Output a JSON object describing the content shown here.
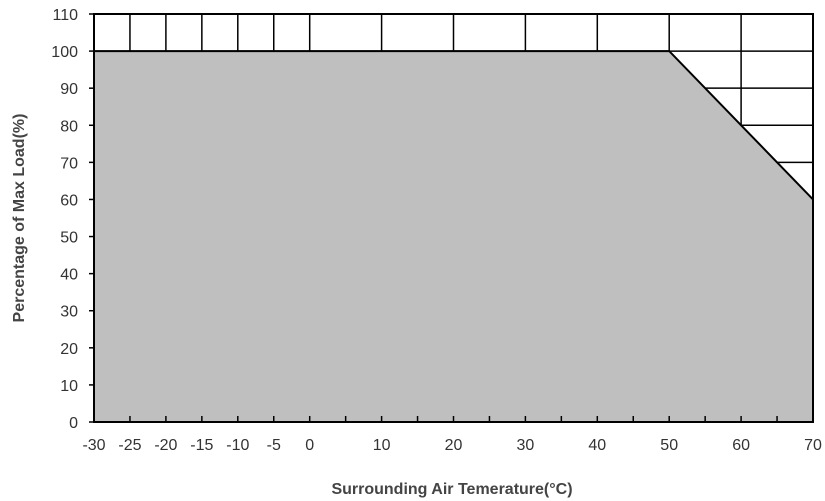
{
  "chart_data": {
    "type": "area",
    "xlabel": "Surrounding Air Temerature(°C)",
    "ylabel": "Percentage of Max Load(%)",
    "xlim": [
      -30,
      70
    ],
    "ylim": [
      0,
      110
    ],
    "x_ticks": [
      -30,
      -25,
      -20,
      -15,
      -10,
      -5,
      0,
      5,
      10,
      15,
      20,
      25,
      30,
      35,
      40,
      45,
      50,
      55,
      60,
      65,
      70
    ],
    "x_tick_labels": [
      "-30",
      "-25",
      "-20",
      "-15",
      "-10",
      "-5",
      "0",
      "10",
      "20",
      "30",
      "40",
      "50",
      "60",
      "70"
    ],
    "x_tick_label_values": [
      -30,
      -25,
      -20,
      -15,
      -10,
      -5,
      0,
      10,
      20,
      30,
      40,
      50,
      60,
      70
    ],
    "y_ticks": [
      0,
      10,
      20,
      30,
      40,
      50,
      60,
      70,
      80,
      90,
      100,
      110
    ],
    "y_tick_labels": [
      "0",
      "10",
      "20",
      "30",
      "40",
      "50",
      "60",
      "70",
      "80",
      "90",
      "100",
      "110"
    ],
    "grid": true,
    "fill_color": "#bfbfbf",
    "grid_color": "#000000",
    "series": [
      {
        "x": [
          -30,
          50,
          70
        ],
        "y": [
          100,
          100,
          60
        ]
      }
    ]
  }
}
